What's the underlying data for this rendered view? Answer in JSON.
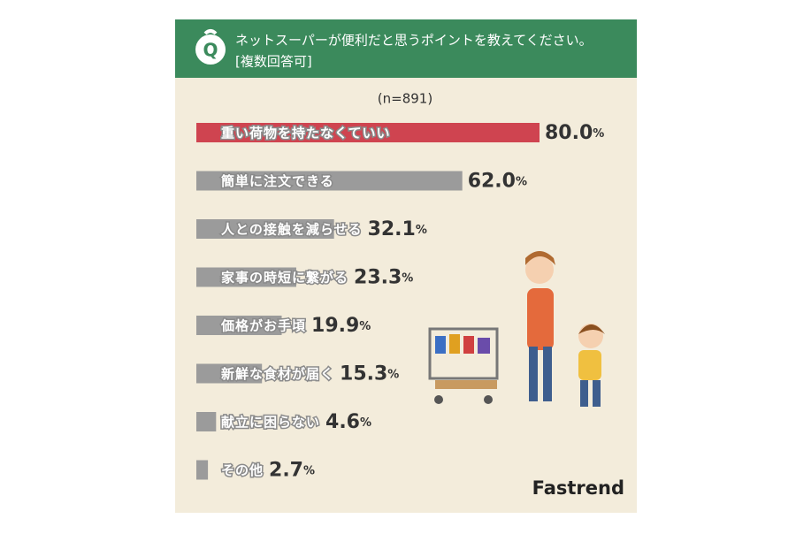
{
  "chart_data": {
    "type": "bar",
    "orientation": "horizontal",
    "title": "ネットスーパーが便利だと思うポイントを教えてください。",
    "subtitle": "[複数回答可]",
    "icon_label": "Q",
    "note": "(n=891)",
    "categories": [
      "重い荷物を持たなくていい",
      "簡単に注文できる",
      "人との接触を減らせる",
      "家事の時短に繋がる",
      "価格がお手頃",
      "新鮮な食材が届く",
      "献立に困らない",
      "その他"
    ],
    "values": [
      80.0,
      62.0,
      32.1,
      23.3,
      19.9,
      15.3,
      4.6,
      2.7
    ],
    "value_labels": [
      "80.0%",
      "62.0%",
      "32.1%",
      "23.3%",
      "19.9%",
      "15.3%",
      "4.6%",
      "2.7%"
    ],
    "colors": [
      "#cf4450",
      "#9b9b9b",
      "#9b9b9b",
      "#9b9b9b",
      "#9b9b9b",
      "#9b9b9b",
      "#9b9b9b",
      "#9b9b9b"
    ],
    "xlim": [
      0,
      100
    ],
    "source": "Fastrend"
  }
}
